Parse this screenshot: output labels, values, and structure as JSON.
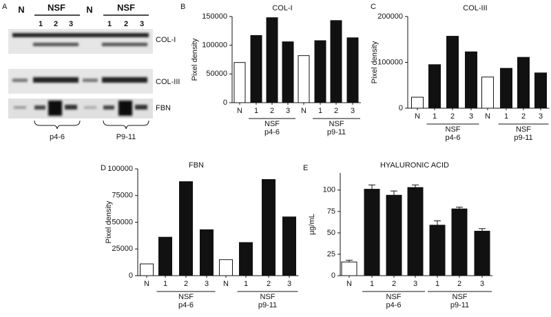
{
  "panel_a": {
    "panel": "A",
    "header": [
      "N",
      "NSF",
      "N",
      "NSF"
    ],
    "lanes": [
      "1",
      "2",
      "3",
      "1",
      "2",
      "3"
    ],
    "bands": [
      "COL-I",
      "COL-III",
      "FBN"
    ],
    "groups": [
      "p4-6",
      "P9-11"
    ]
  },
  "chart_data": [
    {
      "type": "bar",
      "panel": "B",
      "title": "COL-I",
      "y_label": "Pixel density",
      "categories": [
        "N",
        "1",
        "2",
        "3",
        "N",
        "1",
        "2",
        "3"
      ],
      "values": [
        70000,
        117000,
        148000,
        106000,
        82000,
        108000,
        143000,
        113000
      ],
      "colors": [
        "#ffffff",
        "#111111",
        "#111111",
        "#111111",
        "#ffffff",
        "#111111",
        "#111111",
        "#111111"
      ],
      "ylim": [
        0,
        150000
      ],
      "yticks": [
        0,
        50000,
        100000,
        150000
      ],
      "groups": [
        {
          "name": "NSF",
          "sub": "p4-6"
        },
        {
          "name": "NSF",
          "sub": "p9-11"
        }
      ]
    },
    {
      "type": "bar",
      "panel": "C",
      "title": "COL-III",
      "y_label": "Pixel density",
      "categories": [
        "N",
        "1",
        "2",
        "3",
        "N",
        "1",
        "2",
        "3"
      ],
      "values": [
        24000,
        95000,
        157000,
        123000,
        68000,
        87000,
        111000,
        77000
      ],
      "colors": [
        "#ffffff",
        "#111111",
        "#111111",
        "#111111",
        "#ffffff",
        "#111111",
        "#111111",
        "#111111"
      ],
      "ylim": [
        0,
        200000
      ],
      "yticks": [
        0,
        100000,
        200000
      ],
      "groups": [
        {
          "name": "NSF",
          "sub": "p4-6"
        },
        {
          "name": "NSF",
          "sub": "p9-11"
        }
      ]
    },
    {
      "type": "bar",
      "panel": "D",
      "title": "FBN",
      "y_label": "Pixel density",
      "categories": [
        "N",
        "1",
        "2",
        "3",
        "N",
        "1",
        "2",
        "3"
      ],
      "values": [
        11000,
        36000,
        88000,
        43000,
        15000,
        31000,
        90000,
        55000
      ],
      "colors": [
        "#ffffff",
        "#111111",
        "#111111",
        "#111111",
        "#ffffff",
        "#111111",
        "#111111",
        "#111111"
      ],
      "ylim": [
        0,
        100000
      ],
      "yticks": [
        0,
        25000,
        50000,
        75000,
        100000
      ],
      "groups": [
        {
          "name": "NSF",
          "sub": "p4-6"
        },
        {
          "name": "NSF",
          "sub": "p9-11"
        }
      ]
    },
    {
      "type": "bar",
      "panel": "E",
      "title": "HYALURONIC ACID",
      "y_label": "µg/mL",
      "categories": [
        "N",
        "1",
        "2",
        "3",
        "1",
        "2",
        "3"
      ],
      "values": [
        16,
        101,
        94,
        103,
        59,
        78,
        52
      ],
      "errors": [
        2,
        5,
        5,
        3,
        5,
        2,
        3
      ],
      "colors": [
        "#ffffff",
        "#111111",
        "#111111",
        "#111111",
        "#111111",
        "#111111",
        "#111111"
      ],
      "ylim": [
        0,
        120
      ],
      "yticks": [
        0,
        25,
        50,
        75,
        100
      ],
      "groups": [
        {
          "name": "NSF",
          "sub": "p4-6"
        },
        {
          "name": "NSF",
          "sub": "p9-11"
        }
      ]
    }
  ]
}
